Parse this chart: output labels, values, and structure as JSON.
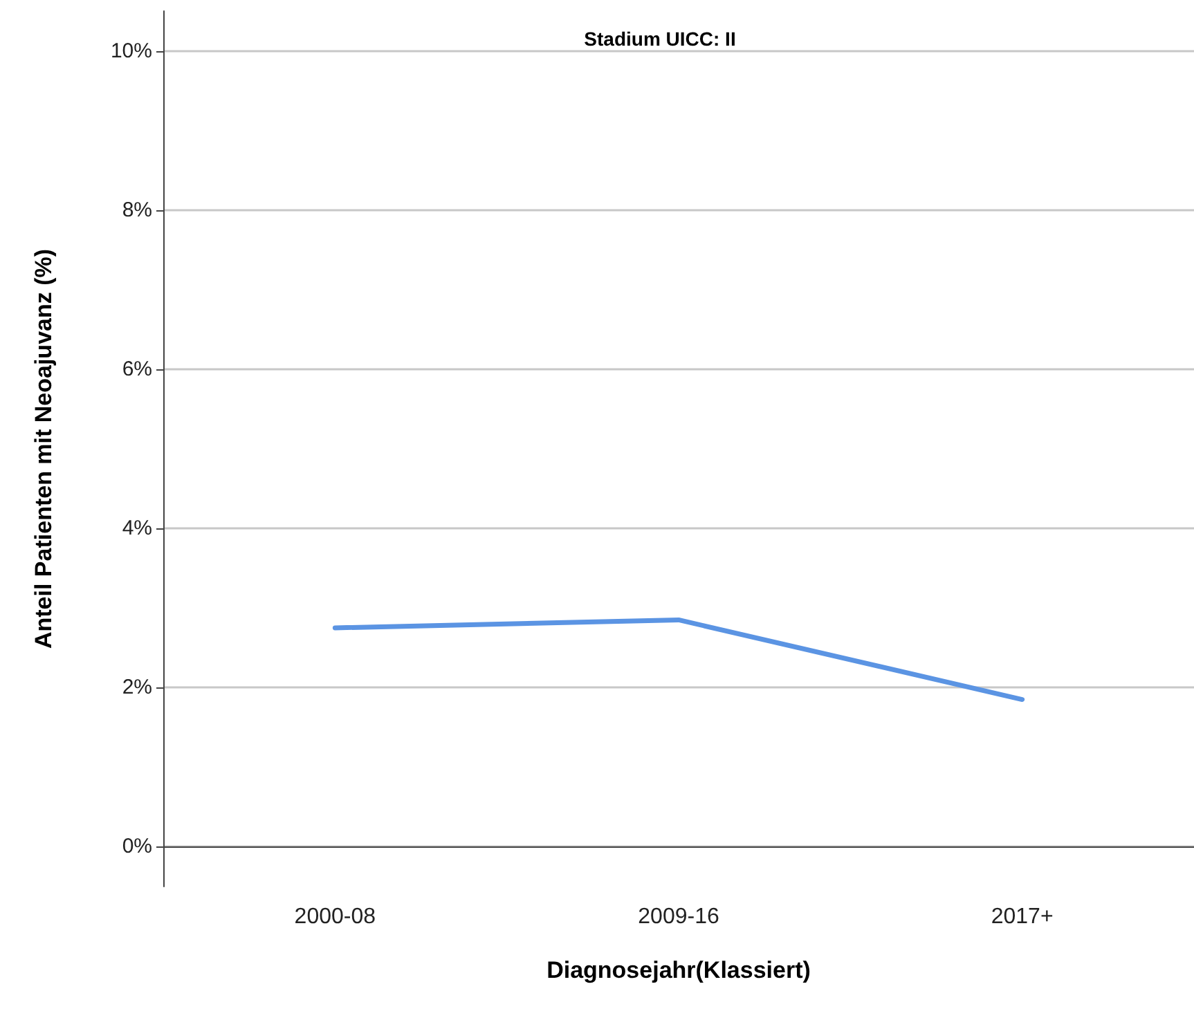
{
  "chart_data": {
    "type": "line",
    "title": "Stadium UICC: II",
    "xlabel": "Diagnosejahr(Klassiert)",
    "ylabel": "Anteil Patienten mit Neoajuvanz (%)",
    "categories": [
      "2000-08",
      "2009-16",
      "2017+"
    ],
    "series": [
      {
        "color": "#5b94e3",
        "values": [
          2.75,
          2.85,
          1.85
        ]
      }
    ],
    "ylim": [
      -0.5,
      10.5
    ],
    "yticks": [
      {
        "value": 0,
        "label": "0%"
      },
      {
        "value": 2,
        "label": "2%"
      },
      {
        "value": 4,
        "label": "4%"
      },
      {
        "value": 6,
        "label": "6%"
      },
      {
        "value": 8,
        "label": "8%"
      },
      {
        "value": 10,
        "label": "10%"
      }
    ],
    "grid": "y",
    "marker": "none",
    "line_style": "solid"
  }
}
